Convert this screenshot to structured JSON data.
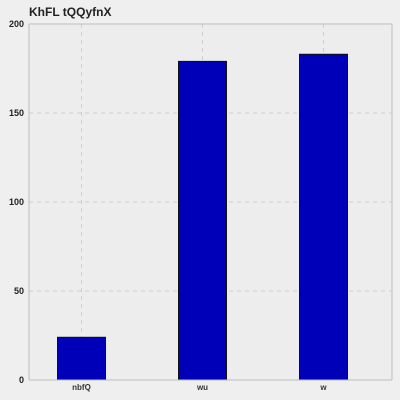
{
  "chart_data": {
    "type": "bar",
    "title": "KhFL tQQyfnX",
    "categories": [
      "nbfQ",
      "wu",
      "w"
    ],
    "values": [
      24,
      179,
      183
    ],
    "xlabel": "",
    "ylabel": "",
    "ylim": [
      0,
      200
    ],
    "yticks": [
      0,
      50,
      100,
      150,
      200
    ],
    "grid": true,
    "colors": {
      "bar_fill": "#0000b8",
      "bar_stroke": "#111111",
      "plot_bg": "#ededed",
      "grid": "#cfcfcf",
      "axes": "#bdbdbd"
    }
  }
}
